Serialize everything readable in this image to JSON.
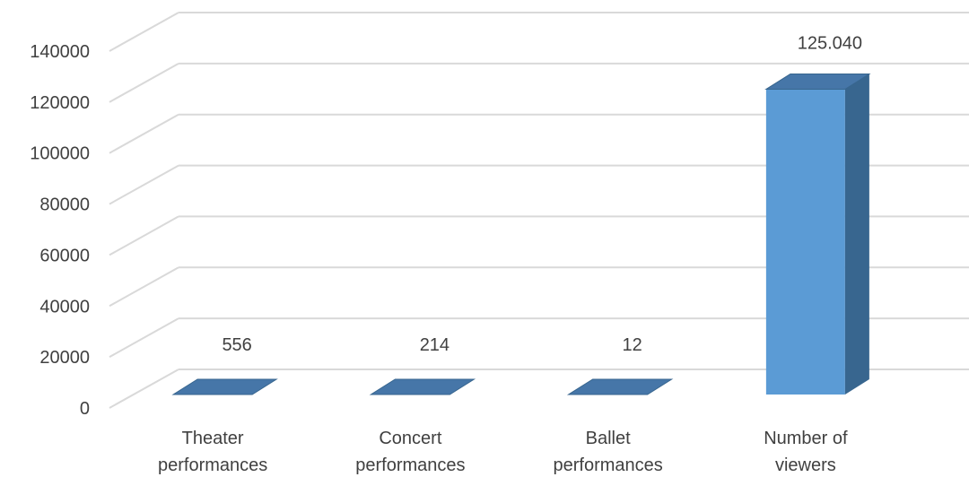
{
  "chart_data": {
    "type": "bar",
    "style": "3d-column",
    "categories": [
      "Theater performances",
      "Concert performances",
      "Ballet performances",
      "Number of viewers"
    ],
    "category_label_lines": [
      [
        "Theater",
        "performances"
      ],
      [
        "Concert",
        "performances"
      ],
      [
        "Ballet",
        "performances"
      ],
      [
        "Number of",
        "viewers"
      ]
    ],
    "values": [
      556,
      214,
      12,
      125040
    ],
    "data_labels": [
      "556",
      "214",
      "12",
      "125.040"
    ],
    "y_ticks": [
      "0",
      "20000",
      "40000",
      "60000",
      "80000",
      "100000",
      "120000",
      "140000"
    ],
    "ylim": [
      0,
      140000
    ],
    "grid": true,
    "legend": "none",
    "title": "",
    "xlabel": "",
    "ylabel": ""
  },
  "colors": {
    "bar_front": "#5b9bd5",
    "bar_side": "#38668f",
    "bar_top": "#4676a8",
    "grid": "#d9d9d9",
    "text": "#404040"
  }
}
